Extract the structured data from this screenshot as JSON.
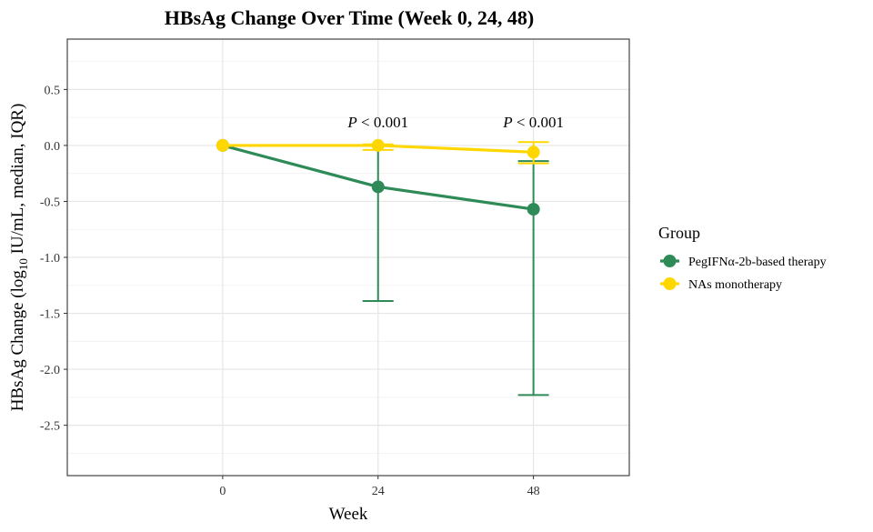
{
  "chart_data": {
    "type": "line",
    "title": "HBsAg Change Over Time (Week 0, 24, 48)",
    "xlabel": "Week",
    "ylabel_parts": {
      "before": "HBsAg Change (log",
      "sub": "10",
      "after": " IU/mL, median, IQR)"
    },
    "x": [
      0,
      24,
      48
    ],
    "x_tick_labels": [
      "0",
      "24",
      "48"
    ],
    "xlim": [
      -24,
      62.8
    ],
    "ylim": [
      -2.95,
      0.95
    ],
    "y_ticks": [
      0.5,
      0.0,
      -0.5,
      -1.0,
      -1.5,
      -2.0,
      -2.5
    ],
    "y_tick_labels": [
      "0.5",
      "0.0",
      "-0.5",
      "-1.0",
      "-1.5",
      "-2.0",
      "-2.5"
    ],
    "grid": true,
    "legend": {
      "title": "Group",
      "position": "right"
    },
    "series": [
      {
        "name": "PegIFNα-2b-based therapy",
        "color": "#2E8B57",
        "median": [
          0.0,
          -0.37,
          -0.57
        ],
        "iqr_low": [
          0.0,
          -1.39,
          -2.23
        ],
        "iqr_high": [
          0.0,
          0.0,
          -0.14
        ]
      },
      {
        "name": "NAs monotherapy",
        "color": "#FFD700",
        "median": [
          0.0,
          0.0,
          -0.06
        ],
        "iqr_low": [
          0.0,
          -0.04,
          -0.16
        ],
        "iqr_high": [
          0.0,
          0.01,
          0.03
        ]
      }
    ],
    "annotations": [
      {
        "x": 24,
        "y": 0.16,
        "italic": "P",
        "text": " < 0.001"
      },
      {
        "x": 48,
        "y": 0.16,
        "italic": "P",
        "text": " < 0.001"
      }
    ]
  }
}
